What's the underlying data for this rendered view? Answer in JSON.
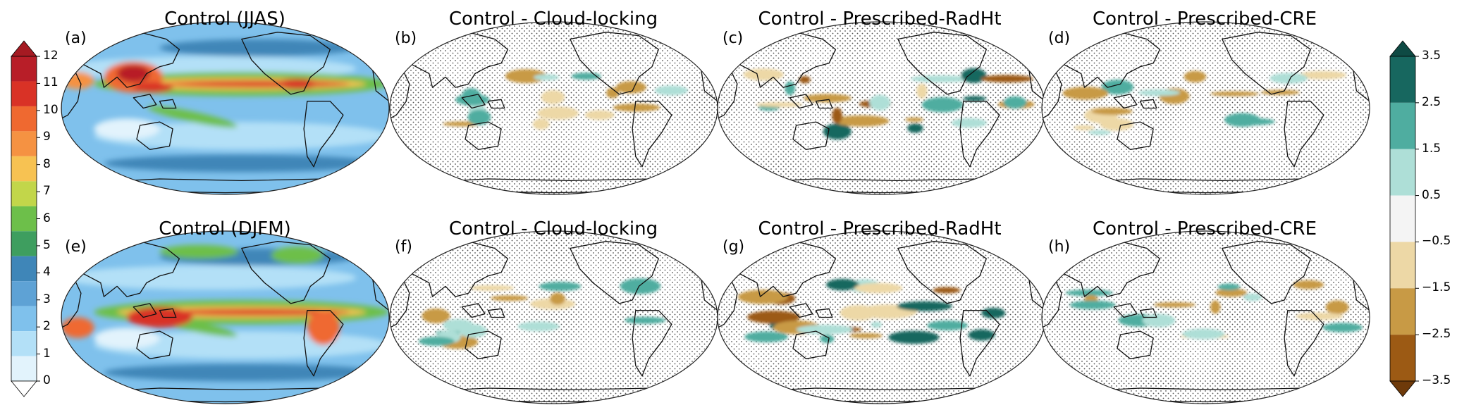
{
  "panels": [
    {
      "letter": "(a)",
      "title": "Control (JJAS)",
      "kind": "control",
      "season": "JJAS"
    },
    {
      "letter": "(b)",
      "title": "Control - Cloud-locking",
      "kind": "diff",
      "season": "JJAS"
    },
    {
      "letter": "(c)",
      "title": "Control - Prescribed-RadHt",
      "kind": "diff",
      "season": "JJAS"
    },
    {
      "letter": "(d)",
      "title": "Control - Prescribed-CRE",
      "kind": "diff",
      "season": "JJAS"
    },
    {
      "letter": "(e)",
      "title": "Control (DJFM)",
      "kind": "control",
      "season": "DJFM"
    },
    {
      "letter": "(f)",
      "title": "Control - Cloud-locking",
      "kind": "diff",
      "season": "DJFM"
    },
    {
      "letter": "(g)",
      "title": "Control - Prescribed-RadHt",
      "kind": "diff",
      "season": "DJFM"
    },
    {
      "letter": "(h)",
      "title": "Control - Prescribed-CRE",
      "kind": "diff",
      "season": "DJFM"
    }
  ],
  "colorbar_left": {
    "ticks": [
      "0",
      "1",
      "2",
      "3",
      "4",
      "5",
      "6",
      "7",
      "8",
      "9",
      "10",
      "11",
      "12"
    ],
    "levels": [
      0,
      1,
      2,
      3,
      4,
      5,
      6,
      7,
      8,
      9,
      10,
      11,
      12
    ],
    "colors": [
      "#e2f3fc",
      "#b3e0f7",
      "#7fc1ec",
      "#5ea2d5",
      "#3f86b8",
      "#3e9e5f",
      "#6dbf4a",
      "#c2d64a",
      "#f7c252",
      "#f59242",
      "#ef6930",
      "#d93226",
      "#b81e28"
    ],
    "over_color": "#a51a22",
    "under_color": "#ffffff"
  },
  "colorbar_right": {
    "ticks": [
      "3.5",
      "2.5",
      "1.5",
      "0.5",
      "−0.5",
      "−1.5",
      "−2.5",
      "−3.5"
    ],
    "levels": [
      -3.5,
      -2.5,
      -1.5,
      -0.5,
      0.5,
      1.5,
      2.5,
      3.5
    ],
    "colors": [
      "#9c5a14",
      "#c89a45",
      "#edd8a6",
      "#f4f4f4",
      "#aedfd7",
      "#4fada0",
      "#17675f"
    ],
    "over_color": "#0e4a44",
    "under_color": "#6e3a0a"
  }
}
